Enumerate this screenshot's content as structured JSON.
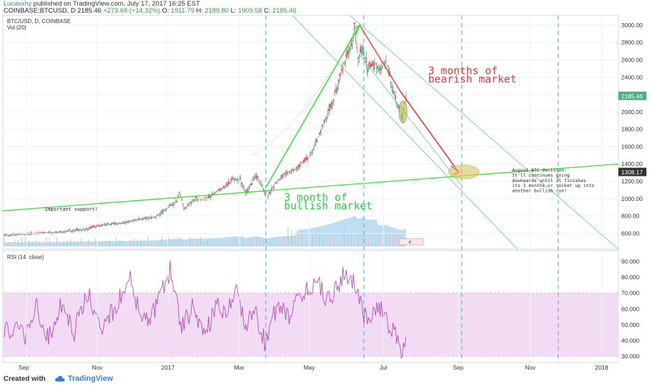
{
  "header": {
    "author": "Lucasxhy",
    "published": " published on TradingView.com, July 17, 2017 16:25 EST",
    "symbol": "COINBASE:BTCUSD, D  2185.46 ",
    "change": "+273.68 (+14.32%)",
    "open_label": " O: ",
    "open": "1911.79",
    "high_label": " H: ",
    "high": "2189.80",
    "low_label": " L: ",
    "low": "1909.58",
    "close_label": " C: ",
    "close": "2185.46"
  },
  "chart_data": [
    {
      "type": "candlestick",
      "title": "BTC/USD, D, COINBASE",
      "indicator_label": "Vol (20)",
      "x_ticks": [
        "Sep",
        "Nov",
        "2017",
        "Mar",
        "May",
        "Jul",
        "Sep",
        "Nov",
        "2018"
      ],
      "y_ticks": [
        600,
        800,
        1000,
        1200,
        1400,
        1600,
        1800,
        2000,
        2200,
        2400,
        2600,
        2800,
        3000
      ],
      "ylim": [
        450,
        3080
      ],
      "price_tags": [
        {
          "value": "2185.46",
          "color": "#4caf7d"
        },
        {
          "value": "1308.17",
          "color": "#333333"
        }
      ],
      "close_series_approx": [
        {
          "month": "Aug 2016",
          "value": 580
        },
        {
          "month": "Sep 2016",
          "value": 605
        },
        {
          "month": "Oct 2016",
          "value": 680
        },
        {
          "month": "Nov 2016",
          "value": 740
        },
        {
          "month": "Dec 2016",
          "value": 920
        },
        {
          "month": "Jan 2017",
          "value": 980
        },
        {
          "month": "Feb 2017",
          "value": 1180
        },
        {
          "month": "Mar 2017",
          "value": 1050
        },
        {
          "month": "Apr 2017",
          "value": 1340
        },
        {
          "month": "May 2017",
          "value": 2300
        },
        {
          "month": "Jun 2017",
          "value": 2500
        },
        {
          "month": "Jul 2017",
          "value": 2185
        }
      ],
      "annotations": [
        {
          "text": "3 months of",
          "color": "#e53935"
        },
        {
          "text": "bearish market",
          "color": "#e53935"
        },
        {
          "text": "3 month of",
          "color": "#2ecc40"
        },
        {
          "text": "bullish market",
          "color": "#2ecc40"
        },
        {
          "text": "important support!",
          "color": "#222222"
        },
        {
          "text": "August BTC decision.",
          "color": "#222222"
        },
        {
          "text": "It'll continues going",
          "color": "#222222"
        },
        {
          "text": "downwards until it finishes",
          "color": "#222222"
        },
        {
          "text": "its 3 months or rocket up into",
          "color": "#222222"
        },
        {
          "text": "another bullish run!",
          "color": "#222222"
        }
      ],
      "chart_text": {
        "count": "4"
      }
    },
    {
      "type": "line",
      "title": "RSI (14, close)",
      "y_ticks": [
        30,
        40,
        50,
        60,
        70,
        80,
        90
      ],
      "y_tick_labels": [
        "30.000",
        "40.000",
        "50.000",
        "60.000",
        "70.000",
        "80.000",
        "90.000"
      ],
      "ylim": [
        27,
        95
      ],
      "band": [
        30,
        70
      ],
      "series_color": "#b44db4",
      "band_color": "#f1dcf4"
    }
  ],
  "footer": {
    "created_with": "Created with",
    "brand": "TradingView"
  }
}
